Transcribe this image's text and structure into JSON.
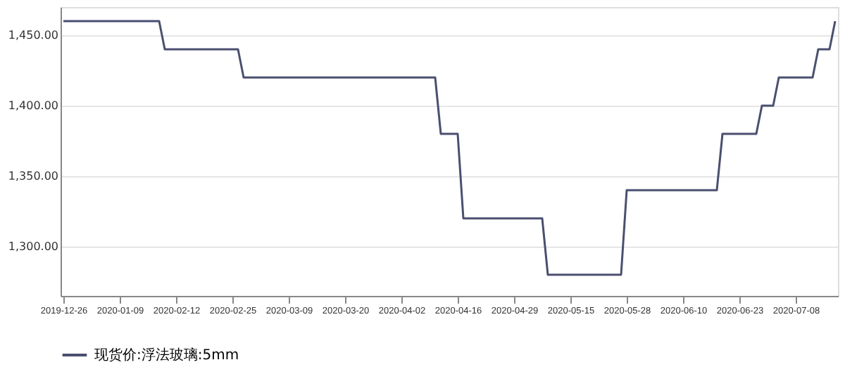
{
  "chart_data": {
    "type": "line",
    "categories": [
      "2019-12-26",
      null,
      null,
      null,
      null,
      null,
      null,
      null,
      null,
      null,
      "2020-01-09",
      null,
      null,
      null,
      null,
      null,
      null,
      null,
      null,
      null,
      "2020-02-12",
      null,
      null,
      null,
      null,
      null,
      null,
      null,
      null,
      null,
      "2020-02-25",
      null,
      null,
      null,
      null,
      null,
      null,
      null,
      null,
      null,
      "2020-03-09",
      null,
      null,
      null,
      null,
      null,
      null,
      null,
      null,
      null,
      "2020-03-20",
      null,
      null,
      null,
      null,
      null,
      null,
      null,
      null,
      null,
      "2020-04-02",
      null,
      null,
      null,
      null,
      null,
      null,
      null,
      null,
      null,
      "2020-04-16",
      null,
      null,
      null,
      null,
      null,
      null,
      null,
      null,
      null,
      "2020-04-29",
      null,
      null,
      null,
      null,
      null,
      null,
      null,
      null,
      null,
      "2020-05-15",
      null,
      null,
      null,
      null,
      null,
      null,
      null,
      null,
      null,
      "2020-05-28",
      null,
      null,
      null,
      null,
      null,
      null,
      null,
      null,
      null,
      "2020-06-10",
      null,
      null,
      null,
      null,
      null,
      null,
      null,
      null,
      null,
      "2020-06-23",
      null,
      null,
      null,
      null,
      null,
      null,
      null,
      null,
      null,
      "2020-07-08",
      null,
      null,
      null,
      null,
      null,
      null,
      null
    ],
    "series": [
      {
        "name": "现货价:浮法玻璃:5mm",
        "color": "#4b4f70",
        "values": [
          1460,
          1460,
          1460,
          1460,
          1460,
          1460,
          1460,
          1460,
          1460,
          1460,
          1460,
          1460,
          1460,
          1460,
          1460,
          1460,
          1460,
          1460,
          1440,
          1440,
          1440,
          1440,
          1440,
          1440,
          1440,
          1440,
          1440,
          1440,
          1440,
          1440,
          1440,
          1440,
          1420,
          1420,
          1420,
          1420,
          1420,
          1420,
          1420,
          1420,
          1420,
          1420,
          1420,
          1420,
          1420,
          1420,
          1420,
          1420,
          1420,
          1420,
          1420,
          1420,
          1420,
          1420,
          1420,
          1420,
          1420,
          1420,
          1420,
          1420,
          1420,
          1420,
          1420,
          1420,
          1420,
          1420,
          1420,
          1380,
          1380,
          1380,
          1380,
          1320,
          1320,
          1320,
          1320,
          1320,
          1320,
          1320,
          1320,
          1320,
          1320,
          1320,
          1320,
          1320,
          1320,
          1320,
          1280,
          1280,
          1280,
          1280,
          1280,
          1280,
          1280,
          1280,
          1280,
          1280,
          1280,
          1280,
          1280,
          1280,
          1340,
          1340,
          1340,
          1340,
          1340,
          1340,
          1340,
          1340,
          1340,
          1340,
          1340,
          1340,
          1340,
          1340,
          1340,
          1340,
          1340,
          1380,
          1380,
          1380,
          1380,
          1380,
          1380,
          1380,
          1400,
          1400,
          1400,
          1420,
          1420,
          1420,
          1420,
          1420,
          1420,
          1420,
          1440,
          1440,
          1440,
          1460
        ]
      }
    ],
    "ylim": [
      1265,
      1470
    ],
    "yticks": [
      {
        "value": 1300,
        "label": "1,300.00"
      },
      {
        "value": 1350,
        "label": "1,350.00"
      },
      {
        "value": 1400,
        "label": "1,400.00"
      },
      {
        "value": 1450,
        "label": "1,450.00"
      }
    ],
    "grid": "y",
    "legend": "bottom",
    "line_style": "solid",
    "marker": "none"
  }
}
